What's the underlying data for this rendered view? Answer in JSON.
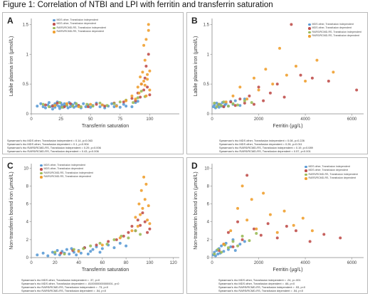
{
  "figure_title": "Figure 1: Correlation of NTBI and LPI with ferritin and transferrin saturation",
  "colors": {
    "MDS other, Transfusion independent": "#5b9bd5",
    "MDS other, Transfusion dependent": "#c0504d",
    "RARS/RCMD-RS, Transfusion independent": "#9bbb59",
    "RARS/RCMD-RS, Transfusion dependent": "#f0a030"
  },
  "chart_data": [
    {
      "panel": "A",
      "type": "scatter",
      "xlabel": "Transferrin saturation",
      "ylabel": "Labile plasma iron (µmol/L)",
      "xlim": [
        0,
        125
      ],
      "ylim": [
        0,
        1.6
      ],
      "xticks": [
        0,
        25,
        50,
        75,
        100
      ],
      "yticks": [
        0,
        0.5,
        1,
        1.5
      ],
      "ytick_labels": [
        "0",
        "0.5",
        "1",
        "1.5"
      ],
      "legend": [
        "MDS other, Transfusion independent",
        "MDS other, Transfusion dependent",
        "RARS/RCMD-RS, Transfusion independent",
        "RARS/RCMD-RS, Transfusion dependent"
      ],
      "stats": [
        "Spearman's rho MDS other, Transfusion independent = 0.14, p=0.063",
        "Spearman's rho MDS other, Transfusion dependent = 0.1, p=0.904",
        "Spearman's rho RARS/RCMD-RS, Transfusion independent = 0.29, p=0.006",
        "Spearman's rho RARS/RCMD-RS, Transfusion dependent = 0.43, p=0.006"
      ],
      "series": [
        {
          "name": "MDS other, Transfusion independent",
          "x": [
            5,
            8,
            10,
            12,
            14,
            15,
            16,
            18,
            18,
            20,
            20,
            21,
            22,
            23,
            24,
            25,
            25,
            26,
            27,
            28,
            28,
            30,
            31,
            32,
            33,
            34,
            35,
            36,
            37,
            38,
            40,
            42,
            44,
            46,
            48,
            50,
            52,
            55,
            58,
            60,
            62,
            65,
            68,
            70,
            72,
            75,
            78,
            80,
            85,
            88,
            90
          ],
          "y": [
            0.13,
            0.17,
            0.12,
            0.1,
            0.15,
            0.19,
            0.12,
            0.14,
            0.08,
            0.11,
            0.17,
            0.15,
            0.2,
            0.13,
            0.09,
            0.12,
            0.18,
            0.15,
            0.11,
            0.17,
            0.13,
            0.14,
            0.1,
            0.19,
            0.12,
            0.16,
            0.15,
            0.11,
            0.18,
            0.13,
            0.14,
            0.1,
            0.17,
            0.12,
            0.15,
            0.11,
            0.14,
            0.18,
            0.12,
            0.15,
            0.1,
            0.13,
            0.17,
            0.12,
            0.14,
            0.11,
            0.16,
            0.13,
            0.12,
            0.19,
            0.21
          ]
        },
        {
          "name": "MDS other, Transfusion dependent",
          "x": [
            12,
            18,
            22,
            28,
            33,
            40,
            48,
            55,
            62,
            70,
            78,
            85,
            88,
            90,
            92,
            93,
            95,
            96,
            97,
            98,
            99,
            100
          ],
          "y": [
            0.15,
            0.13,
            0.18,
            0.12,
            0.17,
            0.14,
            0.12,
            0.16,
            0.13,
            0.18,
            0.2,
            0.26,
            0.22,
            0.35,
            0.28,
            0.5,
            0.4,
            0.6,
            0.8,
            0.45,
            1.0,
            0.32
          ]
        },
        {
          "name": "RARS/RCMD-RS, Transfusion independent",
          "x": [
            10,
            15,
            20,
            24,
            26,
            30,
            35,
            38,
            42,
            47,
            52,
            58,
            64,
            70,
            75,
            80,
            86,
            90,
            93,
            96
          ],
          "y": [
            0.16,
            0.12,
            0.14,
            0.19,
            0.11,
            0.15,
            0.13,
            0.17,
            0.12,
            0.16,
            0.13,
            0.18,
            0.14,
            0.17,
            0.2,
            0.23,
            0.19,
            0.27,
            0.38,
            0.29
          ]
        },
        {
          "name": "RARS/RCMD-RS, Transfusion dependent",
          "x": [
            20,
            30,
            40,
            50,
            60,
            72,
            80,
            85,
            88,
            90,
            91,
            92,
            93,
            94,
            95,
            95,
            96,
            96,
            97,
            97,
            98,
            98,
            99,
            99,
            100,
            100
          ],
          "y": [
            0.14,
            0.17,
            0.12,
            0.16,
            0.15,
            0.13,
            0.22,
            0.3,
            0.25,
            0.45,
            0.35,
            0.62,
            0.5,
            0.7,
            0.55,
            1.15,
            0.48,
            0.9,
            0.3,
            1.25,
            0.66,
            0.58,
            1.4,
            1.5,
            0.72,
            0.4
          ]
        }
      ]
    },
    {
      "panel": "B",
      "type": "scatter",
      "xlabel": "Ferritin (µg/L)",
      "ylabel": "Labile plasma iron (µmol/L)",
      "xlim": [
        0,
        6500
      ],
      "ylim": [
        0,
        1.6
      ],
      "xticks": [
        0,
        2000,
        4000,
        6000
      ],
      "yticks": [
        0,
        0.5,
        1,
        1.5
      ],
      "ytick_labels": [
        "0",
        "0.5",
        "1",
        "1.5"
      ],
      "legend": [
        "MDS other, Transfusion independent",
        "MDS other, Transfusion dependent",
        "RARS/RCMD-RS, Transfusion independent",
        "RARS/RCMD-RS, Transfusion dependent"
      ],
      "stats": [
        "Spearman's rho MDS other, Transfusion independent = 0.08, p=0.226",
        "Spearman's rho MDS other, Transfusion dependent = 0.26, p=0.011",
        "Spearman's rho RARS/RCMD-RS, Transfusion independent = 0.19, p=0.089",
        "Spearman's rho RARS/RCMD-RS, Transfusion dependent = 0.57, p<0.001"
      ],
      "series": [
        {
          "name": "MDS other, Transfusion independent",
          "x": [
            60,
            100,
            150,
            200,
            250,
            300,
            350,
            400,
            450,
            500,
            550,
            600,
            700,
            800,
            900,
            1000,
            1200,
            1400
          ],
          "y": [
            0.12,
            0.15,
            0.1,
            0.18,
            0.14,
            0.11,
            0.16,
            0.13,
            0.19,
            0.12,
            0.15,
            0.17,
            0.13,
            0.21,
            0.16,
            0.22,
            0.14,
            0.25
          ]
        },
        {
          "name": "MDS other, Transfusion dependent",
          "x": [
            300,
            500,
            800,
            1000,
            1200,
            1400,
            1600,
            1800,
            2000,
            2200,
            2500,
            2800,
            3100,
            3400,
            3800,
            4300,
            5000,
            6200
          ],
          "y": [
            0.16,
            0.12,
            0.2,
            0.14,
            0.25,
            0.18,
            0.3,
            0.16,
            0.45,
            0.22,
            0.35,
            0.5,
            0.28,
            1.5,
            0.65,
            0.6,
            0.55,
            0.4
          ]
        },
        {
          "name": "RARS/RCMD-RS, Transfusion independent",
          "x": [
            100,
            200,
            300,
            400,
            500,
            700,
            900,
            1100,
            1400,
            1700
          ],
          "y": [
            0.18,
            0.12,
            0.16,
            0.14,
            0.2,
            0.13,
            0.17,
            0.15,
            0.22,
            0.19
          ]
        },
        {
          "name": "RARS/RCMD-RS, Transfusion dependent",
          "x": [
            600,
            900,
            1200,
            1500,
            1800,
            2000,
            2300,
            2600,
            2900,
            3200,
            3600,
            4000,
            4500,
            5200
          ],
          "y": [
            0.2,
            0.3,
            0.45,
            0.25,
            0.6,
            0.4,
            0.75,
            0.5,
            1.1,
            0.65,
            0.8,
            0.55,
            0.9,
            0.7
          ]
        }
      ]
    },
    {
      "panel": "C",
      "type": "scatter",
      "xlabel": "Transferrin saturation",
      "ylabel": "Non-transferrin bound iron (µmol/L)",
      "xlim": [
        0,
        125
      ],
      "ylim": [
        0,
        10.5
      ],
      "xticks": [
        0,
        20,
        40,
        60,
        80,
        100,
        120
      ],
      "yticks": [
        0,
        2,
        4,
        6,
        8,
        10
      ],
      "ytick_labels": [
        "0",
        "2",
        "4",
        "6",
        "8",
        "10"
      ],
      "legend": [
        "MDS other, Transfusion independent",
        "MDS other, Transfusion dependent",
        "RARS/RCMD-RS, Transfusion independent",
        "RARS/RCMD-RS, Transfusion dependent"
      ],
      "stats": [
        "Spearman's rho MDS other, Transfusion independent = .37, p<0",
        "Spearman's rho MDS other, Transfusion dependent = .8100000000000001, p<0",
        "Spearman's rho RARS/RCMD-RS, Transfusion independent = .73, p<0",
        "Spearman's rho RARS/RCMD-RS, Transfusion dependent = .54, p<0"
      ],
      "series": [
        {
          "name": "MDS other, Transfusion independent",
          "x": [
            5,
            10,
            14,
            18,
            20,
            22,
            24,
            26,
            28,
            30,
            32,
            34,
            36,
            38,
            40,
            42,
            45,
            48,
            50,
            52,
            55,
            58,
            60,
            65,
            70,
            75,
            80
          ],
          "y": [
            0.3,
            0.5,
            0.2,
            0.6,
            0.4,
            0.8,
            0.3,
            0.7,
            0.5,
            0.9,
            0.4,
            1.0,
            0.6,
            0.3,
            0.8,
            0.5,
            1.1,
            0.4,
            0.7,
            0.9,
            1.2,
            0.6,
            1.0,
            1.4,
            1.1,
            1.6,
            1.3
          ]
        },
        {
          "name": "MDS other, Transfusion dependent",
          "x": [
            25,
            35,
            45,
            55,
            65,
            72,
            78,
            82,
            85,
            88,
            90,
            92,
            94,
            96,
            98,
            100
          ],
          "y": [
            0.5,
            0.8,
            1.1,
            1.4,
            1.8,
            2.0,
            2.4,
            2.8,
            3.5,
            3.0,
            4.2,
            3.6,
            5.0,
            4.0,
            2.8,
            3.2
          ]
        },
        {
          "name": "RARS/RCMD-RS, Transfusion independent",
          "x": [
            20,
            28,
            36,
            44,
            50,
            58,
            64,
            70,
            76,
            82,
            88,
            92
          ],
          "y": [
            0.6,
            0.4,
            0.9,
            1.0,
            1.3,
            1.6,
            1.5,
            2.0,
            2.4,
            2.2,
            3.0,
            2.6
          ]
        },
        {
          "name": "RARS/RCMD-RS, Transfusion dependent",
          "x": [
            40,
            60,
            75,
            85,
            88,
            90,
            91,
            92,
            93,
            94,
            95,
            96,
            97,
            98,
            99,
            100
          ],
          "y": [
            0.7,
            1.4,
            2.2,
            3.0,
            4.5,
            3.5,
            6.0,
            4.8,
            7.5,
            5.5,
            9.0,
            6.5,
            8.2,
            4.2,
            5.8,
            3.8
          ]
        }
      ]
    },
    {
      "panel": "D",
      "type": "scatter",
      "xlabel": "Ferritin (µg/L)",
      "ylabel": "Non-transferrin bound iron (µmol/L)",
      "xlim": [
        0,
        6500
      ],
      "ylim": [
        0,
        10.5
      ],
      "xticks": [
        0,
        2000,
        4000,
        6000
      ],
      "yticks": [
        0,
        2,
        4,
        6,
        8,
        10
      ],
      "ytick_labels": [
        "0",
        "2",
        "4",
        "6",
        "8",
        "10"
      ],
      "legend": [
        "MDS other, Transfusion independent",
        "MDS other, Transfusion dependent",
        "RARS/RCMD-RS, Transfusion independent",
        "RARS/RCMD-RS, Transfusion dependent"
      ],
      "stats": [
        "Spearman's rho MDS other, Transfusion independent = .24, p=.001",
        "Spearman's rho MDS other, Transfusion dependent = .66, p<0",
        "Spearman's rho RARS/RCMD-RS, Transfusion independent = .53, p<0",
        "Spearman's rho RARS/RCMD-RS, Transfusion dependent = .54, p<0"
      ],
      "series": [
        {
          "name": "MDS other, Transfusion independent",
          "x": [
            50,
            100,
            150,
            200,
            250,
            300,
            350,
            400,
            500,
            600,
            700,
            800,
            900,
            1000,
            1200,
            1400
          ],
          "y": [
            0.3,
            0.6,
            0.2,
            0.8,
            0.4,
            1.0,
            0.5,
            1.3,
            0.7,
            1.6,
            0.9,
            1.2,
            2.0,
            0.8,
            1.5,
            1.8
          ]
        },
        {
          "name": "MDS other, Transfusion dependent",
          "x": [
            300,
            500,
            700,
            900,
            1100,
            1300,
            1500,
            1800,
            2100,
            2400,
            2800,
            3200,
            3600,
            4200,
            4800,
            5500
          ],
          "y": [
            0.8,
            1.5,
            2.8,
            1.2,
            4.0,
            2.0,
            9.2,
            3.2,
            2.5,
            3.8,
            2.2,
            3.5,
            3.0,
            1.8,
            2.6,
            2.2
          ]
        },
        {
          "name": "RARS/RCMD-RS, Transfusion independent",
          "x": [
            100,
            250,
            400,
            550,
            700,
            900,
            1100,
            1300,
            1600,
            1900
          ],
          "y": [
            0.4,
            0.9,
            0.6,
            1.4,
            1.1,
            1.8,
            1.3,
            2.4,
            1.9,
            2.7
          ]
        },
        {
          "name": "RARS/RCMD-RS, Transfusion dependent",
          "x": [
            500,
            800,
            1100,
            1300,
            1500,
            1700,
            1900,
            2200,
            2500,
            2800,
            3100,
            3500,
            3900,
            4300
          ],
          "y": [
            1.5,
            3.0,
            5.5,
            8.0,
            4.2,
            6.5,
            3.2,
            7.2,
            4.8,
            2.8,
            5.2,
            3.6,
            4.4,
            3.0
          ]
        }
      ]
    }
  ]
}
